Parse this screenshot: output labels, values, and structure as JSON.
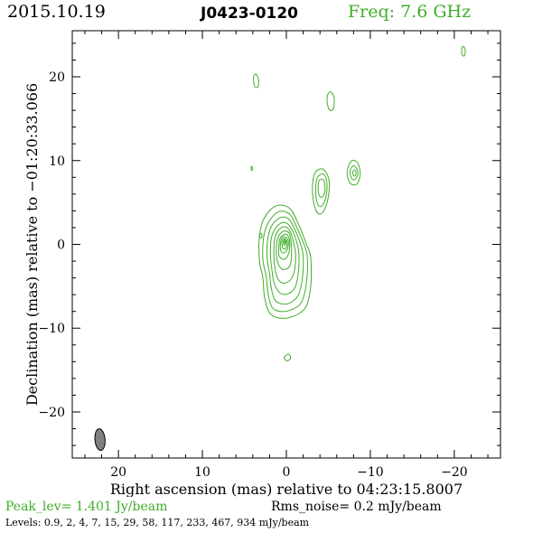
{
  "header": {
    "date": "2015.10.19",
    "source": "J0423-0120",
    "frequency": "Freq: 7.6 GHz"
  },
  "footer": {
    "peak": "Peak_lev=  1.401 Jy/beam",
    "rms": "Rms_noise=  0.2 mJy/beam",
    "levels": "Levels: 0.9,   2,   4,   7,  15,  29,  58, 117, 233, 467, 934 mJy/beam"
  },
  "colors": {
    "contour": "#3fae2a",
    "beam_fill": "#808080",
    "axes": "#000000"
  },
  "chart_data": {
    "type": "contour",
    "xlabel": "Right ascension (mas) relative to 04:23:15.8007",
    "ylabel": "Declination (mas) relative to −01:20:33.066",
    "xlim": [
      25.5,
      -25.5
    ],
    "ylim": [
      -25.5,
      25.5
    ],
    "xticks": [
      20,
      10,
      0,
      -10,
      -20
    ],
    "xtick_labels": [
      "20",
      "10",
      "0",
      "−10",
      "−20"
    ],
    "yticks": [
      20,
      10,
      0,
      -10,
      -20
    ],
    "ytick_labels": [
      "20",
      "10",
      "0",
      "−10",
      "−20"
    ],
    "peak_jy_per_beam": 1.401,
    "rms_mjy_per_beam": 0.2,
    "levels_mjy_per_beam": [
      0.9,
      2,
      4,
      7,
      15,
      29,
      58,
      117,
      233,
      467,
      934
    ],
    "beam": {
      "x": 22.2,
      "y": -23.3,
      "major": 2.6,
      "minor": 1.2,
      "pa": -5
    },
    "core": {
      "x": 0.2,
      "y": 0.3
    },
    "contours": [
      {
        "name": "core-l1",
        "points": [
          [
            2.8,
            -4
          ],
          [
            3.2,
            -2
          ],
          [
            3.2,
            1
          ],
          [
            2.6,
            3.2
          ],
          [
            1.2,
            4.6
          ],
          [
            -0.4,
            4.3
          ],
          [
            -1.4,
            2.5
          ],
          [
            -2.4,
            0
          ],
          [
            -2.9,
            -1.6
          ],
          [
            -2.9,
            -5
          ],
          [
            -2.3,
            -7.5
          ],
          [
            -0.8,
            -8.6
          ],
          [
            0.8,
            -8.8
          ],
          [
            2,
            -8.2
          ],
          [
            2.6,
            -6.3
          ]
        ]
      },
      {
        "name": "core-l2",
        "points": [
          [
            2.4,
            -3.8
          ],
          [
            2.8,
            -1.8
          ],
          [
            2.7,
            0.9
          ],
          [
            2.1,
            2.7
          ],
          [
            0.9,
            3.9
          ],
          [
            -0.4,
            3.6
          ],
          [
            -1.2,
            2.1
          ],
          [
            -2.1,
            0
          ],
          [
            -2.5,
            -1.5
          ],
          [
            -2.4,
            -4.5
          ],
          [
            -1.8,
            -6.9
          ],
          [
            -0.6,
            -7.8
          ],
          [
            0.7,
            -8
          ],
          [
            1.7,
            -7.5
          ],
          [
            2.2,
            -5.8
          ]
        ]
      },
      {
        "name": "core-l3",
        "points": [
          [
            2,
            -3.5
          ],
          [
            2.3,
            -1.5
          ],
          [
            2.2,
            0.8
          ],
          [
            1.7,
            2.3
          ],
          [
            0.7,
            3.2
          ],
          [
            -0.3,
            3
          ],
          [
            -1.0,
            1.8
          ],
          [
            -1.7,
            0
          ],
          [
            -2.0,
            -1.4
          ],
          [
            -1.9,
            -4.1
          ],
          [
            -1.4,
            -6.1
          ],
          [
            -0.4,
            -7.0
          ],
          [
            0.6,
            -7.1
          ],
          [
            1.4,
            -6.6
          ],
          [
            1.8,
            -5.2
          ]
        ]
      },
      {
        "name": "core-l4",
        "points": [
          [
            1.7,
            -3.2
          ],
          [
            1.9,
            -1.3
          ],
          [
            1.8,
            0.7
          ],
          [
            1.3,
            1.9
          ],
          [
            0.5,
            2.6
          ],
          [
            -0.2,
            2.4
          ],
          [
            -0.8,
            1.5
          ],
          [
            -1.3,
            0
          ],
          [
            -1.5,
            -1.3
          ],
          [
            -1.4,
            -3.6
          ],
          [
            -1.0,
            -5.2
          ],
          [
            -0.2,
            -5.9
          ],
          [
            0.6,
            -5.9
          ],
          [
            1.1,
            -5.4
          ],
          [
            1.5,
            -4.5
          ]
        ]
      },
      {
        "name": "core-l5",
        "points": [
          [
            1.4,
            -2.6
          ],
          [
            1.5,
            -1.0
          ],
          [
            1.4,
            0.6
          ],
          [
            1.0,
            1.6
          ],
          [
            0.4,
            2.1
          ],
          [
            -0.2,
            1.9
          ],
          [
            -0.6,
            1.2
          ],
          [
            -0.9,
            0
          ],
          [
            -1.1,
            -1.1
          ],
          [
            -1.0,
            -2.9
          ],
          [
            -0.6,
            -4.1
          ],
          [
            0.1,
            -4.6
          ],
          [
            0.7,
            -4.5
          ],
          [
            1.1,
            -3.9
          ]
        ]
      },
      {
        "name": "core-l6",
        "points": [
          [
            1.1,
            -1.9
          ],
          [
            1.2,
            -0.7
          ],
          [
            1.1,
            0.5
          ],
          [
            0.7,
            1.3
          ],
          [
            0.2,
            1.6
          ],
          [
            -0.3,
            1.4
          ],
          [
            -0.5,
            0.8
          ],
          [
            -0.6,
            -0.3
          ],
          [
            -0.6,
            -1.6
          ],
          [
            -0.4,
            -2.6
          ],
          [
            0.2,
            -3.0
          ],
          [
            0.7,
            -2.8
          ]
        ]
      },
      {
        "name": "core-l7",
        "points": [
          [
            0.9,
            -1.2
          ],
          [
            0.9,
            -0.3
          ],
          [
            0.8,
            0.6
          ],
          [
            0.4,
            1.1
          ],
          [
            0.0,
            1.2
          ],
          [
            -0.3,
            0.8
          ],
          [
            -0.4,
            0.1
          ],
          [
            -0.3,
            -1.0
          ],
          [
            0.1,
            -1.7
          ],
          [
            0.6,
            -1.7
          ]
        ]
      },
      {
        "name": "core-l8",
        "points": [
          [
            0.7,
            -0.6
          ],
          [
            0.7,
            0.2
          ],
          [
            0.5,
            0.8
          ],
          [
            0.1,
            0.9
          ],
          [
            -0.2,
            0.5
          ],
          [
            -0.2,
            -0.3
          ],
          [
            0.1,
            -0.9
          ],
          [
            0.5,
            -1.0
          ]
        ]
      },
      {
        "name": "core-l9",
        "points": [
          [
            0.5,
            -0.2
          ],
          [
            0.5,
            0.5
          ],
          [
            0.2,
            0.7
          ],
          [
            0.0,
            0.5
          ],
          [
            -0.1,
            0.0
          ],
          [
            0.1,
            -0.5
          ],
          [
            0.4,
            -0.5
          ]
        ]
      },
      {
        "name": "core-l10",
        "points": [
          [
            0.35,
            0.1
          ],
          [
            0.3,
            0.5
          ],
          [
            0.15,
            0.55
          ],
          [
            0.05,
            0.3
          ],
          [
            0.1,
            0.0
          ],
          [
            0.25,
            -0.1
          ]
        ]
      },
      {
        "name": "core-l11",
        "points": [
          [
            0.25,
            0.2
          ],
          [
            0.2,
            0.4
          ],
          [
            0.12,
            0.42
          ],
          [
            0.1,
            0.25
          ],
          [
            0.15,
            0.12
          ]
        ]
      },
      {
        "name": "knot-ne-l1",
        "points": [
          [
            -3.4,
            8.5
          ],
          [
            -4.3,
            9.0
          ],
          [
            -5.0,
            8.0
          ],
          [
            -5.1,
            6.5
          ],
          [
            -4.7,
            4.5
          ],
          [
            -4.0,
            3.6
          ],
          [
            -3.4,
            4.4
          ],
          [
            -3.1,
            6.5
          ]
        ]
      },
      {
        "name": "knot-ne-l2",
        "points": [
          [
            -3.7,
            8.0
          ],
          [
            -4.4,
            8.4
          ],
          [
            -4.8,
            7.5
          ],
          [
            -4.8,
            6.2
          ],
          [
            -4.5,
            5.0
          ],
          [
            -4.0,
            4.5
          ],
          [
            -3.6,
            5.2
          ],
          [
            -3.5,
            6.8
          ]
        ]
      },
      {
        "name": "knot-ne-l3",
        "points": [
          [
            -3.9,
            7.6
          ],
          [
            -4.4,
            7.7
          ],
          [
            -4.6,
            6.9
          ],
          [
            -4.5,
            6.0
          ],
          [
            -4.1,
            5.6
          ],
          [
            -3.8,
            6.3
          ]
        ]
      },
      {
        "name": "knot-e-l1",
        "points": [
          [
            -7.3,
            9.0
          ],
          [
            -7.8,
            10.0
          ],
          [
            -8.5,
            9.7
          ],
          [
            -8.8,
            8.4
          ],
          [
            -8.4,
            7.2
          ],
          [
            -7.7,
            7.2
          ],
          [
            -7.3,
            8.0
          ]
        ]
      },
      {
        "name": "knot-e-l2",
        "points": [
          [
            -7.6,
            8.8
          ],
          [
            -8.0,
            9.4
          ],
          [
            -8.4,
            9.0
          ],
          [
            -8.5,
            8.3
          ],
          [
            -8.1,
            7.7
          ],
          [
            -7.7,
            8.0
          ]
        ]
      },
      {
        "name": "knot-e-l3",
        "points": [
          [
            -7.9,
            8.6
          ],
          [
            -8.1,
            8.9
          ],
          [
            -8.3,
            8.6
          ],
          [
            -8.2,
            8.2
          ],
          [
            -8.0,
            8.2
          ]
        ]
      },
      {
        "name": "blob-1",
        "points": [
          [
            -4.9,
            17.8
          ],
          [
            -5.3,
            18.2
          ],
          [
            -5.7,
            17.4
          ],
          [
            -5.6,
            16.2
          ],
          [
            -5.2,
            16.0
          ],
          [
            -4.9,
            16.7
          ]
        ]
      },
      {
        "name": "blob-2",
        "points": [
          [
            3.9,
            20.0
          ],
          [
            3.6,
            20.3
          ],
          [
            3.3,
            19.6
          ],
          [
            3.4,
            18.8
          ],
          [
            3.8,
            18.9
          ]
        ]
      },
      {
        "name": "blob-3",
        "points": [
          [
            -20.9,
            23.4
          ],
          [
            -21.1,
            23.6
          ],
          [
            -21.3,
            23.2
          ],
          [
            -21.2,
            22.5
          ],
          [
            -20.9,
            22.7
          ]
        ]
      },
      {
        "name": "blob-4",
        "points": [
          [
            0.2,
            -13.4
          ],
          [
            -0.3,
            -13.1
          ],
          [
            -0.5,
            -13.6
          ],
          [
            -0.1,
            -13.9
          ],
          [
            0.2,
            -13.7
          ]
        ]
      },
      {
        "name": "blob-5",
        "points": [
          [
            3.2,
            1.2
          ],
          [
            3.0,
            1.3
          ],
          [
            2.9,
            1.0
          ],
          [
            3.0,
            0.8
          ],
          [
            3.2,
            0.9
          ]
        ]
      },
      {
        "name": "blob-6",
        "points": [
          [
            4.2,
            9.2
          ],
          [
            4.1,
            9.3
          ],
          [
            4.05,
            9.0
          ],
          [
            4.15,
            8.8
          ]
        ]
      }
    ]
  }
}
